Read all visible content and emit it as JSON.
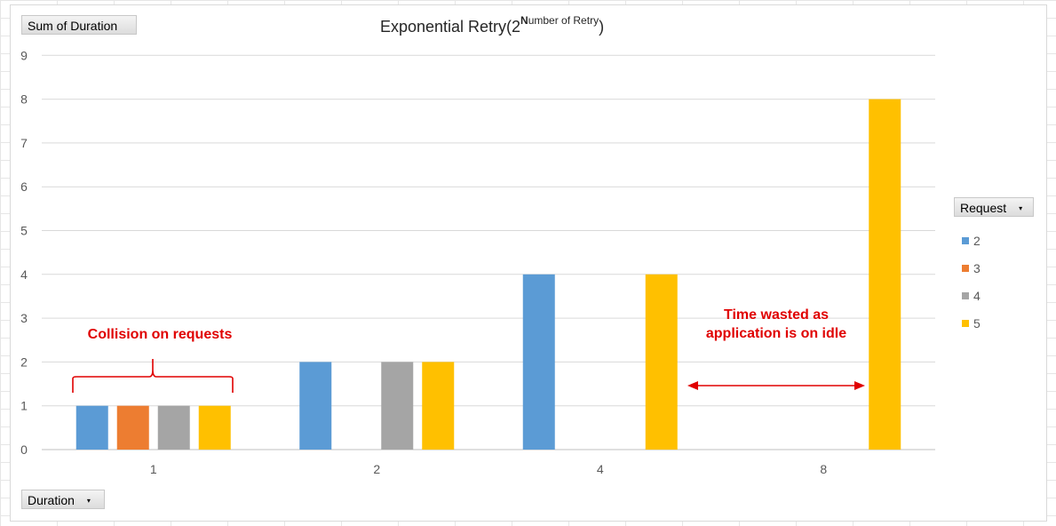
{
  "pivot": {
    "sum_label": "Sum of Duration",
    "duration_label": "Duration",
    "request_label": "Request",
    "dropdown_glyph": "▾"
  },
  "title": {
    "main": "Exponential Retry(2",
    "sup_bold": "N",
    "sup_rest": "umber of Retry",
    "close": ")"
  },
  "annotations": {
    "collision": "Collision on requests",
    "wasted": "Time wasted as application is on idle"
  },
  "colors": {
    "series_2": "#5b9bd5",
    "series_3": "#ed7d31",
    "series_4": "#a5a5a5",
    "series_5": "#ffc000",
    "annotation": "#e00000",
    "gridline": "#d9d9d9"
  },
  "chart_data": {
    "type": "bar",
    "categories": [
      "1",
      "2",
      "4",
      "8"
    ],
    "series": [
      {
        "name": "2",
        "values": [
          1,
          2,
          4,
          null
        ]
      },
      {
        "name": "3",
        "values": [
          1,
          null,
          null,
          null
        ]
      },
      {
        "name": "4",
        "values": [
          1,
          2,
          null,
          null
        ]
      },
      {
        "name": "5",
        "values": [
          1,
          2,
          4,
          8
        ]
      }
    ],
    "title": "Exponential Retry(2Number of Retry)",
    "xlabel": "Duration",
    "ylabel": "Sum of Duration",
    "ylim": [
      0,
      9
    ],
    "yticks": [
      0,
      1,
      2,
      3,
      4,
      5,
      6,
      7,
      8,
      9
    ],
    "legend_title": "Request",
    "legend_position": "right",
    "grid": true
  }
}
